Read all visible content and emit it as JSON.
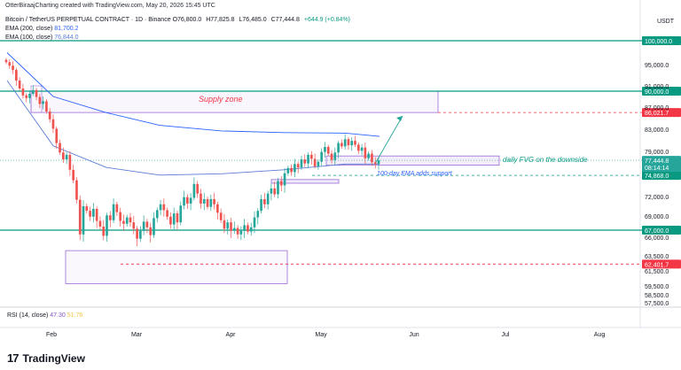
{
  "header": {
    "credit": "OtterBiraajCharting created with TradingView.com, May 20, 2026 15:45 UTC",
    "symbol": "Bitcoin / TetherUS PERPETUAL CONTRACT · 1D · Binance",
    "ohlc": [
      "O76,800.0",
      "H77,825.8",
      "L76,485.0",
      "C77,444.8",
      "+644.9 (+0.84%)"
    ],
    "ema200_label": "EMA (200, close)",
    "ema200_value": "81,700.2",
    "ema100_label": "EMA (100, close)",
    "ema100_value": "76,844.0",
    "currency": "USDT"
  },
  "rsi": {
    "label": "RSI (14, close)",
    "value1": "47.30",
    "value2": "51.76"
  },
  "footer": {
    "logo_mark": "17",
    "brand": "TradingView"
  },
  "colors": {
    "up": "#26a69a",
    "down": "#ef5350",
    "ema200": "#2962ff",
    "ema100": "#5b7bd6",
    "green_level": "#089981",
    "red_level": "#f23645",
    "zone": "#9c6bd8"
  },
  "chart_data": {
    "type": "candlestick",
    "title": "Bitcoin / TetherUS PERPETUAL CONTRACT · 1D · Binance",
    "x_ticks": [
      "Feb",
      "Mar",
      "Apr",
      "May",
      "Jun",
      "Jul",
      "Aug"
    ],
    "y_ticks": [
      100000,
      95000,
      91000,
      87000,
      83000,
      79000,
      75000,
      72000,
      69000,
      66000,
      63500,
      61500,
      59500,
      58500,
      57500
    ],
    "y_tick_labels": [
      "100,000.0",
      "95,000.0",
      "91,000.0",
      "87,000.0",
      "83,000.0",
      "79,000.0",
      "75,000.0",
      "72,000.0",
      "69,000.0",
      "66,000.0",
      "63,500.0",
      "61,500.0",
      "59,500.0",
      "58,500.0",
      "57,500.0"
    ],
    "closes": [
      95500,
      94800,
      94000,
      92000,
      90500,
      89200,
      88700,
      89500,
      90200,
      88900,
      87600,
      88100,
      86200,
      84800,
      83100,
      80500,
      78800,
      77600,
      78400,
      75800,
      74200,
      71500,
      66400,
      70500,
      69800,
      68900,
      70100,
      68300,
      67500,
      66200,
      69100,
      68400,
      70800,
      69600,
      68300,
      67900,
      68800,
      68100,
      67200,
      65800,
      66900,
      68200,
      67400,
      66300,
      68700,
      69900,
      70800,
      69900,
      68900,
      67800,
      69400,
      68100,
      70600,
      71900,
      70900,
      71800,
      73700,
      72400,
      70900,
      71600,
      70400,
      71600,
      70800,
      69500,
      68400,
      67200,
      68100,
      66900,
      67300,
      66400,
      66900,
      67700,
      66800,
      67400,
      68800,
      69800,
      71600,
      70800,
      72400,
      73100,
      72300,
      74100,
      73500,
      75200,
      76100,
      75400,
      76800,
      76200,
      77600,
      76900,
      78400,
      77700,
      76400,
      77200,
      78900,
      79800,
      78600,
      77500,
      78800,
      80500,
      79900,
      81200,
      80100,
      80900,
      80200,
      79100,
      79700,
      77800,
      78600,
      77100,
      76800,
      77444.8
    ],
    "ema200": [
      97500,
      89000,
      86000,
      83700,
      82700,
      82400,
      82300,
      81700
    ],
    "ema100": [
      92000,
      80000,
      76200,
      74900,
      75100,
      75800,
      76800,
      76800
    ],
    "levels": [
      {
        "value": 100000,
        "label": "100,000.0",
        "style": "green"
      },
      {
        "value": 90000,
        "label": "90,000.0",
        "style": "green"
      },
      {
        "value": 86021.7,
        "label": "86,021.7",
        "style": "red-dashed"
      },
      {
        "value": 74868.0,
        "label": "74,868.0",
        "style": "green-dashed"
      },
      {
        "value": 67000,
        "label": "67,000.0",
        "style": "green"
      },
      {
        "value": 62401.7,
        "label": "62,401.7",
        "style": "red-dashed"
      }
    ],
    "price_tags": [
      {
        "value": 77444.8,
        "label": "77,444.8",
        "countdown": "08:14:14"
      }
    ],
    "annotations": [
      {
        "text": "Supply zone",
        "color": "#f23645"
      },
      {
        "text": "daily FVG on the downside",
        "color": "#089981"
      },
      {
        "text": "100-day EMA adds support",
        "color": "#2962ff"
      }
    ],
    "zones": [
      {
        "name": "supply",
        "low": 86021.7,
        "high": 90000
      },
      {
        "name": "fvg-daily",
        "low": 76600,
        "high": 78200
      },
      {
        "name": "ob-apr",
        "low": 73800,
        "high": 74300
      },
      {
        "name": "demand-feb",
        "low": 59800,
        "high": 64200
      }
    ]
  }
}
